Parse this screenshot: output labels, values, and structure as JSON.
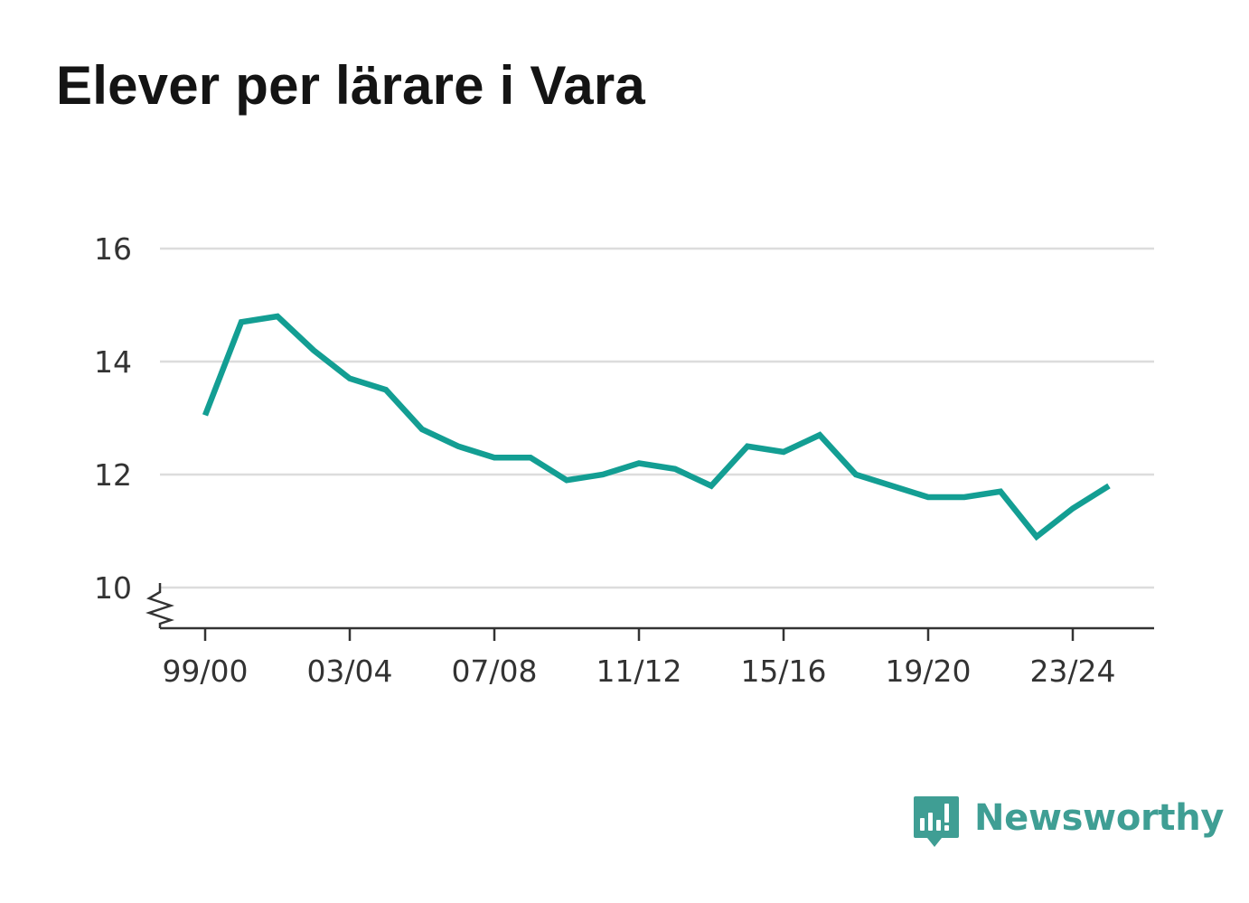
{
  "title": "Elever per lärare i Vara",
  "brand": {
    "name": "Newsworthy",
    "icon": "bar-chart-speech-bubble-icon",
    "color": "#3f9e94"
  },
  "chart_data": {
    "type": "line",
    "title": "Elever per lärare i Vara",
    "xlabel": "",
    "ylabel": "",
    "x": [
      "99/00",
      "00/01",
      "01/02",
      "02/03",
      "03/04",
      "04/05",
      "05/06",
      "06/07",
      "07/08",
      "08/09",
      "09/10",
      "10/11",
      "11/12",
      "12/13",
      "13/14",
      "14/15",
      "15/16",
      "16/17",
      "17/18",
      "18/19",
      "19/20",
      "20/21",
      "21/22",
      "22/23",
      "23/24",
      "24/25"
    ],
    "x_tick_labels": [
      "99/00",
      "03/04",
      "07/08",
      "11/12",
      "15/16",
      "19/20",
      "23/24"
    ],
    "y_ticks": [
      10,
      12,
      14,
      16
    ],
    "ylim": [
      9.3,
      16
    ],
    "y_axis_break": true,
    "grid": true,
    "line_color": "#139e93",
    "series": [
      {
        "values": [
          13.05,
          14.7,
          14.8,
          14.2,
          13.7,
          13.5,
          12.8,
          12.5,
          12.3,
          12.3,
          11.9,
          12.0,
          12.2,
          12.1,
          11.8,
          12.5,
          12.4,
          12.7,
          12.0,
          11.8,
          11.6,
          11.6,
          11.7,
          10.9,
          11.4,
          11.8
        ]
      }
    ]
  }
}
